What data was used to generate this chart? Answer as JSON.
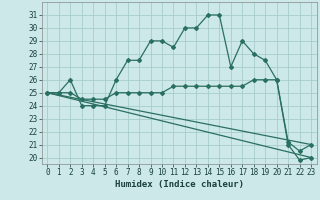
{
  "xlabel": "Humidex (Indice chaleur)",
  "bg_color": "#cce8e8",
  "grid_color": "#a8cccc",
  "line_color": "#2a7060",
  "xlim": [
    -0.5,
    23.5
  ],
  "ylim": [
    19.5,
    32.0
  ],
  "xticks": [
    0,
    1,
    2,
    3,
    4,
    5,
    6,
    7,
    8,
    9,
    10,
    11,
    12,
    13,
    14,
    15,
    16,
    17,
    18,
    19,
    20,
    21,
    22,
    23
  ],
  "yticks": [
    20,
    21,
    22,
    23,
    24,
    25,
    26,
    27,
    28,
    29,
    30,
    31
  ],
  "line1_x": [
    0,
    1,
    2,
    3,
    4,
    5,
    6,
    7,
    8,
    9,
    10,
    11,
    12,
    13,
    14,
    15,
    16,
    17,
    18,
    19,
    20,
    21,
    22,
    23
  ],
  "line1_y": [
    25,
    25,
    26,
    24,
    24,
    24,
    26,
    27.5,
    27.5,
    29,
    29,
    28.5,
    30,
    30,
    31,
    31,
    27,
    29,
    28,
    27.5,
    26,
    21,
    19.8,
    20
  ],
  "line2_x": [
    0,
    1,
    2,
    3,
    4,
    5,
    6,
    7,
    8,
    9,
    10,
    11,
    12,
    13,
    14,
    15,
    16,
    17,
    18,
    19,
    20,
    21,
    22,
    23
  ],
  "line2_y": [
    25,
    25,
    25,
    24.5,
    24.5,
    24.5,
    25,
    25,
    25,
    25,
    25,
    25.5,
    25.5,
    25.5,
    25.5,
    25.5,
    25.5,
    25.5,
    26,
    26,
    26,
    21.2,
    20.5,
    21
  ],
  "line3_x": [
    0,
    23
  ],
  "line3_y": [
    25.0,
    20.0
  ],
  "line4_x": [
    0,
    23
  ],
  "line4_y": [
    25.0,
    21.0
  ],
  "xlabel_fontsize": 6.5,
  "tick_fontsize": 5.5,
  "lw": 0.9,
  "ms": 2.0
}
